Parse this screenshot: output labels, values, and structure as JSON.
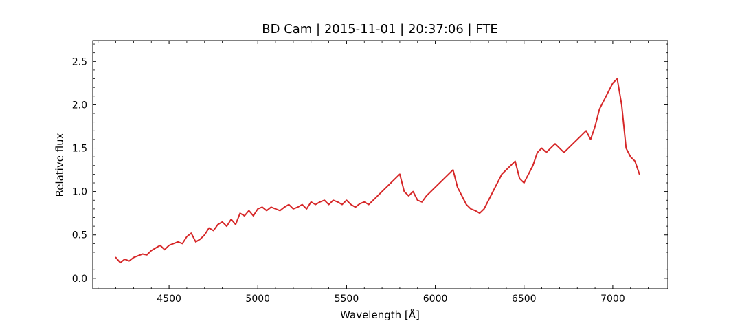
{
  "chart_data": {
    "type": "line",
    "title": "BD Cam | 2015-11-01 | 20:37:06 | FTE",
    "xlabel": "Wavelength [Å]",
    "ylabel": "Relative flux",
    "xlim": [
      4070,
      7310
    ],
    "ylim": [
      -0.12,
      2.74
    ],
    "x_ticks": [
      4500,
      5000,
      5500,
      6000,
      6500,
      7000
    ],
    "x_tick_labels": [
      "4500",
      "5000",
      "5500",
      "6000",
      "6500",
      "7000"
    ],
    "y_ticks": [
      0.0,
      0.5,
      1.0,
      1.5,
      2.0,
      2.5
    ],
    "y_tick_labels": [
      "0.0",
      "0.5",
      "1.0",
      "1.5",
      "2.0",
      "2.5"
    ],
    "grid": false,
    "line_color": "#d62728",
    "series": [
      {
        "points": [
          [
            4200,
            0.24
          ],
          [
            4225,
            0.18
          ],
          [
            4250,
            0.22
          ],
          [
            4275,
            0.2
          ],
          [
            4300,
            0.24
          ],
          [
            4325,
            0.26
          ],
          [
            4350,
            0.28
          ],
          [
            4375,
            0.27
          ],
          [
            4400,
            0.32
          ],
          [
            4425,
            0.35
          ],
          [
            4450,
            0.38
          ],
          [
            4475,
            0.33
          ],
          [
            4500,
            0.38
          ],
          [
            4525,
            0.4
          ],
          [
            4550,
            0.42
          ],
          [
            4575,
            0.4
          ],
          [
            4600,
            0.48
          ],
          [
            4625,
            0.52
          ],
          [
            4650,
            0.42
          ],
          [
            4675,
            0.45
          ],
          [
            4700,
            0.5
          ],
          [
            4725,
            0.58
          ],
          [
            4750,
            0.55
          ],
          [
            4775,
            0.62
          ],
          [
            4800,
            0.65
          ],
          [
            4825,
            0.6
          ],
          [
            4850,
            0.68
          ],
          [
            4875,
            0.62
          ],
          [
            4900,
            0.75
          ],
          [
            4925,
            0.72
          ],
          [
            4950,
            0.78
          ],
          [
            4975,
            0.72
          ],
          [
            5000,
            0.8
          ],
          [
            5025,
            0.82
          ],
          [
            5050,
            0.78
          ],
          [
            5075,
            0.82
          ],
          [
            5100,
            0.8
          ],
          [
            5125,
            0.78
          ],
          [
            5150,
            0.82
          ],
          [
            5175,
            0.85
          ],
          [
            5200,
            0.8
          ],
          [
            5225,
            0.82
          ],
          [
            5250,
            0.85
          ],
          [
            5275,
            0.8
          ],
          [
            5300,
            0.88
          ],
          [
            5325,
            0.85
          ],
          [
            5350,
            0.88
          ],
          [
            5375,
            0.9
          ],
          [
            5400,
            0.85
          ],
          [
            5425,
            0.9
          ],
          [
            5450,
            0.88
          ],
          [
            5475,
            0.85
          ],
          [
            5500,
            0.9
          ],
          [
            5525,
            0.85
          ],
          [
            5550,
            0.82
          ],
          [
            5575,
            0.86
          ],
          [
            5600,
            0.88
          ],
          [
            5625,
            0.85
          ],
          [
            5650,
            0.9
          ],
          [
            5675,
            0.95
          ],
          [
            5700,
            1.0
          ],
          [
            5725,
            1.05
          ],
          [
            5750,
            1.1
          ],
          [
            5775,
            1.15
          ],
          [
            5800,
            1.2
          ],
          [
            5825,
            1.0
          ],
          [
            5850,
            0.95
          ],
          [
            5875,
            1.0
          ],
          [
            5900,
            0.9
          ],
          [
            5925,
            0.88
          ],
          [
            5950,
            0.95
          ],
          [
            5975,
            1.0
          ],
          [
            6000,
            1.05
          ],
          [
            6025,
            1.1
          ],
          [
            6050,
            1.15
          ],
          [
            6075,
            1.2
          ],
          [
            6100,
            1.25
          ],
          [
            6125,
            1.05
          ],
          [
            6150,
            0.95
          ],
          [
            6175,
            0.85
          ],
          [
            6200,
            0.8
          ],
          [
            6225,
            0.78
          ],
          [
            6250,
            0.75
          ],
          [
            6275,
            0.8
          ],
          [
            6300,
            0.9
          ],
          [
            6325,
            1.0
          ],
          [
            6350,
            1.1
          ],
          [
            6375,
            1.2
          ],
          [
            6400,
            1.25
          ],
          [
            6425,
            1.3
          ],
          [
            6450,
            1.35
          ],
          [
            6475,
            1.15
          ],
          [
            6500,
            1.1
          ],
          [
            6525,
            1.2
          ],
          [
            6550,
            1.3
          ],
          [
            6575,
            1.45
          ],
          [
            6600,
            1.5
          ],
          [
            6625,
            1.45
          ],
          [
            6650,
            1.5
          ],
          [
            6675,
            1.55
          ],
          [
            6700,
            1.5
          ],
          [
            6725,
            1.45
          ],
          [
            6750,
            1.5
          ],
          [
            6775,
            1.55
          ],
          [
            6800,
            1.6
          ],
          [
            6825,
            1.65
          ],
          [
            6850,
            1.7
          ],
          [
            6875,
            1.6
          ],
          [
            6900,
            1.75
          ],
          [
            6925,
            1.95
          ],
          [
            6950,
            2.05
          ],
          [
            6975,
            2.15
          ],
          [
            7000,
            2.25
          ],
          [
            7025,
            2.3
          ],
          [
            7050,
            2.0
          ],
          [
            7075,
            1.5
          ],
          [
            7100,
            1.4
          ],
          [
            7125,
            1.35
          ],
          [
            7150,
            1.2
          ]
        ]
      }
    ]
  }
}
